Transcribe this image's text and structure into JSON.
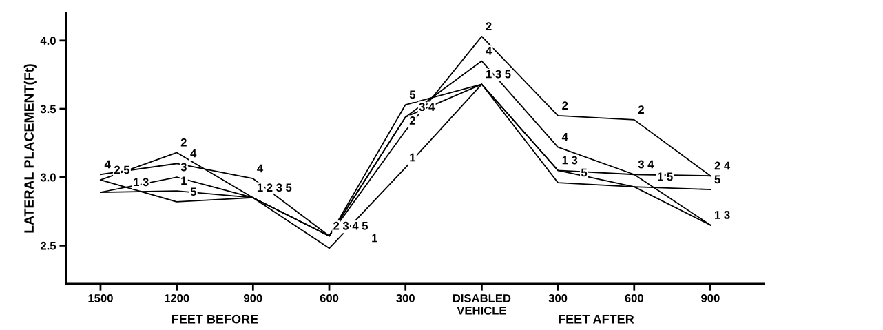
{
  "chart_data": {
    "type": "line",
    "ylabel": "LATERAL PLACEMENT(Ft)",
    "categories": [
      "1500",
      "1200",
      "900",
      "600",
      "300",
      "DISABLED\nVEHICLE",
      "300",
      "600",
      "900"
    ],
    "series": [
      {
        "name": "1",
        "color": "#000000",
        "values": [
          2.89,
          2.9,
          2.85,
          2.48,
          3.07,
          3.68,
          3.05,
          2.93,
          2.65
        ]
      },
      {
        "name": "2",
        "color": "#000000",
        "values": [
          2.98,
          3.18,
          2.85,
          2.57,
          3.34,
          4.03,
          3.45,
          3.42,
          3.01
        ]
      },
      {
        "name": "3",
        "color": "#000000",
        "values": [
          2.89,
          3.0,
          2.85,
          2.57,
          3.44,
          3.68,
          3.05,
          3.02,
          2.65
        ]
      },
      {
        "name": "4",
        "color": "#000000",
        "values": [
          3.02,
          3.1,
          2.99,
          2.57,
          3.44,
          3.85,
          3.22,
          3.02,
          3.01
        ]
      },
      {
        "name": "5",
        "color": "#000000",
        "values": [
          2.98,
          2.82,
          2.85,
          2.57,
          3.53,
          3.68,
          2.96,
          2.93,
          2.91
        ]
      }
    ],
    "ylim": [
      2.22,
      4.2
    ],
    "yticks": [
      {
        "value": 2.5,
        "label": "2.5"
      },
      {
        "value": 3.0,
        "label": "3.0"
      },
      {
        "value": 3.5,
        "label": "3.5"
      },
      {
        "value": 4.0,
        "label": "4.0"
      }
    ],
    "annotations": [
      "FEET BEFORE",
      "FEET AFTER"
    ],
    "grid": false,
    "legend": false,
    "marker": "none",
    "line_style": "solid"
  }
}
